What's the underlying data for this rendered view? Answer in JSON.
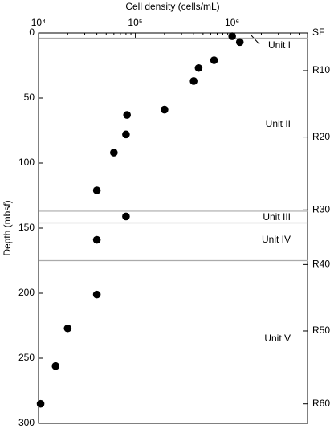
{
  "chart_data": {
    "type": "scatter",
    "title": "Cell density (cells/mL)",
    "y_label": "Depth (mbsf)",
    "x_scale": "log",
    "xlim": [
      10000,
      6000000
    ],
    "xticks": [
      {
        "value": 10000,
        "label": "10⁴"
      },
      {
        "value": 100000,
        "label": "10⁵"
      },
      {
        "value": 1000000,
        "label": "10⁶"
      }
    ],
    "ylim": [
      0,
      300
    ],
    "yticks": [
      0,
      50,
      100,
      150,
      200,
      250,
      300
    ],
    "y2ticks": [
      {
        "value": 0,
        "label": "SF"
      },
      {
        "value": 29,
        "label": "R10"
      },
      {
        "value": 80,
        "label": "R20"
      },
      {
        "value": 136,
        "label": "R30"
      },
      {
        "value": 178,
        "label": "R40"
      },
      {
        "value": 229,
        "label": "R50"
      },
      {
        "value": 285,
        "label": "R60"
      }
    ],
    "color": "#000000",
    "x": [
      1000000,
      1200000,
      650000,
      450000,
      400000,
      200000,
      82000,
      80000,
      60000,
      40000,
      80000,
      40000,
      40000,
      20000,
      15000,
      10500
    ],
    "values": [
      2.5,
      7,
      21,
      27,
      37,
      59,
      63,
      78,
      92,
      121,
      141,
      159,
      201,
      227,
      256,
      285
    ],
    "boundaries": [
      4,
      137,
      146,
      175
    ],
    "boundary_color": "#aaaaaa",
    "units": [
      "Unit I",
      "Unit II",
      "Unit III",
      "Unit IV",
      "Unit V"
    ]
  }
}
